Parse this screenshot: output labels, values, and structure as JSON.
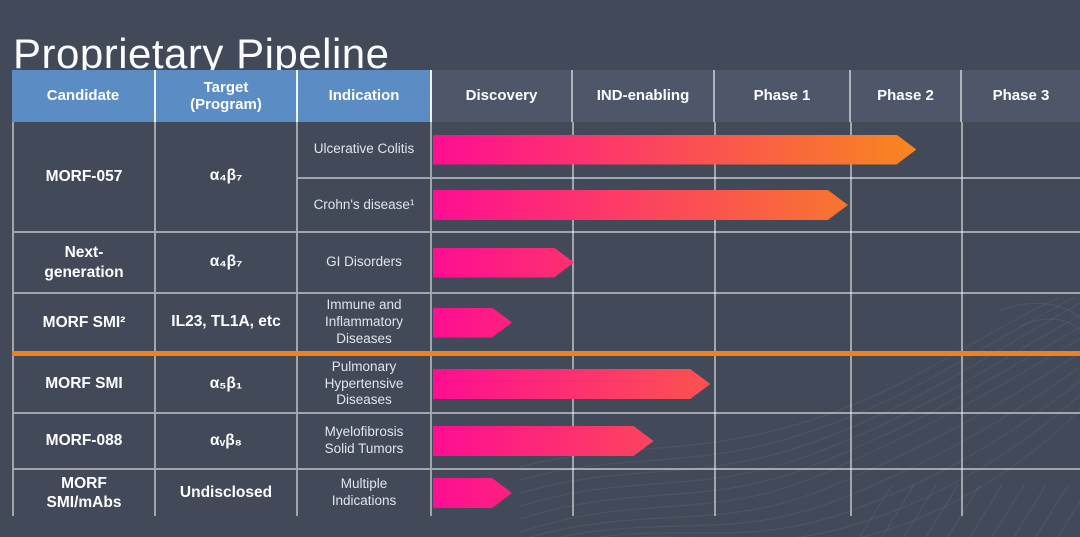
{
  "title": "Proprietary Pipeline",
  "header": {
    "data_columns": [
      "Candidate",
      "Target\n(Program)",
      "Indication"
    ]
  },
  "chart_data": {
    "type": "bar",
    "subtype": "horizontal-pipeline-gantt",
    "stages": [
      "Discovery",
      "IND-enabling",
      "Phase 1",
      "Phase 2",
      "Phase 3"
    ],
    "progress_units": "stage units: 1.0 = end of Discovery, 2.0 = end of IND-enabling, 3.0 = end of Phase 1, 4.0 = end of Phase 2",
    "groups": [
      {
        "candidate": "MORF-057",
        "target": "α₄β₇",
        "rows": [
          {
            "indication": "Ulcerative Colitis",
            "progress": 3.58
          },
          {
            "indication": "Crohn's disease¹",
            "progress": 2.97
          }
        ]
      },
      {
        "candidate": "Next-\ngeneration",
        "target": "α₄β₇",
        "rows": [
          {
            "indication": "GI Disorders",
            "progress": 1.0
          }
        ]
      },
      {
        "candidate": "MORF SMI²",
        "target": "IL23, TL1A, etc",
        "rows": [
          {
            "indication": "Immune and\nInflammatory\nDiseases",
            "progress": 0.56
          }
        ]
      },
      {
        "candidate": "MORF SMI",
        "target": "α₅β₁",
        "rows": [
          {
            "indication": "Pulmonary\nHypertensive\nDiseases",
            "progress": 1.96
          }
        ]
      },
      {
        "candidate": "MORF-088",
        "target": "αᵥβ₈",
        "rows": [
          {
            "indication": "Myelofibrosis\nSolid Tumors",
            "progress": 1.56
          }
        ]
      },
      {
        "candidate": "MORF\nSMI/mAbs",
        "target": "Undisclosed",
        "rows": [
          {
            "indication": "Multiple\nIndications",
            "progress": 0.56
          }
        ]
      }
    ],
    "orange_divider_after_group": 2,
    "colors": {
      "background": "#424A59",
      "stage_header_bg": "#4E5769",
      "data_header_bg": "#5C8CC4",
      "bar_gradient_start": "#FF0D92",
      "bar_gradient_end": "#F7871E",
      "orange_divider": "#EC8320"
    }
  }
}
